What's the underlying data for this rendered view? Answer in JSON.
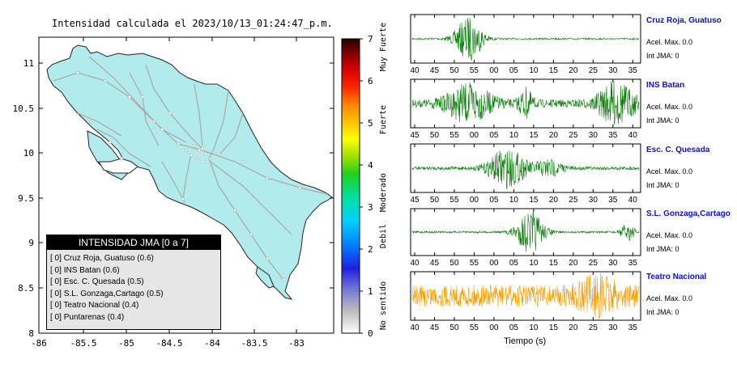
{
  "title": "Intensidad calculada el 2023/10/13_01:24:47_p.m.",
  "map": {
    "xticks": [
      "-86",
      "-85.5",
      "-85",
      "-84.5",
      "-84",
      "-83.5",
      "-83"
    ],
    "yticks": [
      "11",
      "10.5",
      "10",
      "9.5",
      "9",
      "8.5",
      "8"
    ],
    "land_color": "#b2ebec",
    "road_color": "#a8a8a8"
  },
  "legend": {
    "header": "INTENSIDAD JMA [0 a 7]",
    "items": [
      {
        "jma": "[ 0]",
        "name": "Cruz Roja, Guatuso",
        "value": "(0.6)"
      },
      {
        "jma": "[ 0]",
        "name": "INS Batan",
        "value": "(0.6)"
      },
      {
        "jma": "[ 0]",
        "name": "Esc. C. Quesada",
        "value": "(0.5)"
      },
      {
        "jma": "[ 0]",
        "name": "S.L. Gonzaga,Cartago",
        "value": "(0.5)"
      },
      {
        "jma": "[ 0]",
        "name": "Teatro Nacional",
        "value": "(0.4)"
      },
      {
        "jma": "[ 0]",
        "name": "Puntarenas",
        "value": "(0.4)"
      }
    ]
  },
  "colorbar": {
    "ticks": [
      "7",
      "6",
      "5",
      "4",
      "3",
      "2",
      "1",
      "0"
    ],
    "labels": [
      "Muy Fuerte",
      "Fuerte",
      "Moderado",
      "Debil",
      "No sentido"
    ]
  },
  "stations": [
    {
      "name": "Cruz Roja, Guatuso",
      "acel": "Acel. Max. 0.0",
      "jma": "Int JMA: 0",
      "color": "#0a7a0a",
      "ticks": [
        "40",
        "45",
        "50",
        "55",
        "00",
        "05",
        "10",
        "15",
        "20",
        "25",
        "30",
        "35"
      ]
    },
    {
      "name": "INS Batan",
      "acel": "Acel. Max. 0.0",
      "jma": "Int JMA: 0",
      "color": "#0a7a0a",
      "ticks": [
        "45",
        "50",
        "55",
        "00",
        "05",
        "10",
        "15",
        "20",
        "25",
        "30",
        "35",
        "40"
      ]
    },
    {
      "name": "Esc. C. Quesada",
      "acel": "Acel. Max. 0.0",
      "jma": "Int JMA: 0",
      "color": "#0a7a0a",
      "ticks": [
        "45",
        "50",
        "55",
        "00",
        "05",
        "10",
        "15",
        "20",
        "25",
        "30",
        "35",
        "40"
      ]
    },
    {
      "name": "S.L. Gonzaga,Cartago",
      "acel": "Acel. Max. 0.0",
      "jma": "Int JMA: 0",
      "color": "#0a7a0a",
      "ticks": [
        "40",
        "45",
        "50",
        "55",
        "00",
        "05",
        "10",
        "15",
        "20",
        "25",
        "30",
        "35"
      ]
    },
    {
      "name": "Teatro Nacional",
      "acel": "Acel. Max. 0.0",
      "jma": "Int JMA: 0",
      "color": "#f5a000",
      "ticks": [
        "40",
        "45",
        "50",
        "55",
        "00",
        "05",
        "10",
        "15",
        "20",
        "25",
        "30",
        "35"
      ]
    }
  ],
  "xlabel": "Tiempo (s)",
  "chart_data": {
    "type": "table",
    "title": "Intensidad calculada el 2023/10/13_01:24:47_p.m.",
    "columns": [
      "JMA",
      "Estacion",
      "Intensidad"
    ],
    "rows": [
      [
        "0",
        "Cruz Roja, Guatuso",
        0.6
      ],
      [
        "0",
        "INS Batan",
        0.6
      ],
      [
        "0",
        "Esc. C. Quesada",
        0.5
      ],
      [
        "0",
        "S.L. Gonzaga,Cartago",
        0.5
      ],
      [
        "0",
        "Teatro Nacional",
        0.4
      ],
      [
        "0",
        "Puntarenas",
        0.4
      ]
    ],
    "waveforms": [
      {
        "station": "Cruz Roja, Guatuso",
        "acel_max": 0.0,
        "int_jma": 0
      },
      {
        "station": "INS Batan",
        "acel_max": 0.0,
        "int_jma": 0
      },
      {
        "station": "Esc. C. Quesada",
        "acel_max": 0.0,
        "int_jma": 0
      },
      {
        "station": "S.L. Gonzaga,Cartago",
        "acel_max": 0.0,
        "int_jma": 0
      },
      {
        "station": "Teatro Nacional",
        "acel_max": 0.0,
        "int_jma": 0
      }
    ],
    "xlabel": "Tiempo (s)"
  }
}
